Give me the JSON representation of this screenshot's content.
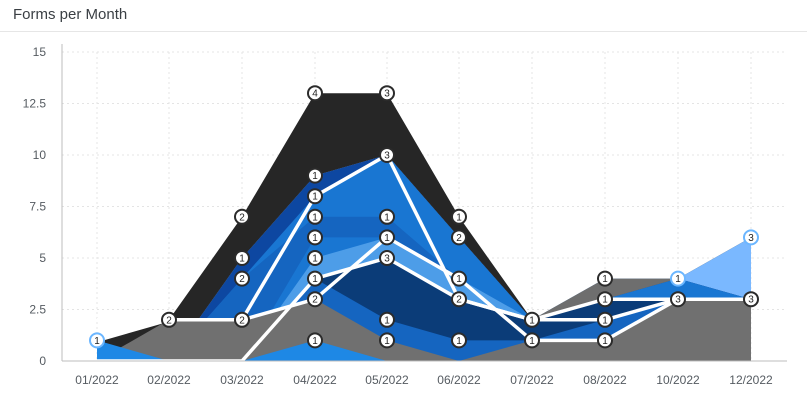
{
  "header": {
    "title": "Forms per Month"
  },
  "colors": {
    "gridline": "#e4e4e4",
    "axis": "#bdbdbd",
    "highlight_line": "#ffffff",
    "highlight_marker": "#6bb6ff"
  },
  "chart_data": {
    "type": "area",
    "stacked": true,
    "title": "Forms per Month",
    "xlabel": "",
    "ylabel": "",
    "categories": [
      "01/2022",
      "02/2022",
      "03/2022",
      "04/2022",
      "05/2022",
      "06/2022",
      "07/2022",
      "08/2022",
      "10/2022",
      "12/2022"
    ],
    "ylim": [
      0,
      15
    ],
    "yticks": [
      "0",
      "2.5",
      "5",
      "7.5",
      "10",
      "12.5",
      "15"
    ],
    "grid": true,
    "legend": "none",
    "cumulative_levels": [
      {
        "color": "#1e88e5",
        "values": [
          1,
          0,
          0,
          1,
          0,
          0,
          0,
          0,
          0,
          0
        ]
      },
      {
        "color": "#707070",
        "values": [
          0,
          2,
          2,
          3,
          1,
          0,
          1,
          1,
          3,
          3
        ]
      },
      {
        "color": "#1565c0",
        "values": [
          0,
          0,
          0,
          4,
          2,
          1,
          1,
          2,
          3,
          3
        ]
      },
      {
        "color": "#0b3c78",
        "values": [
          0,
          0,
          0,
          4,
          5,
          3,
          2,
          3,
          3,
          3
        ]
      },
      {
        "color": "#4d9de8",
        "values": [
          0,
          0,
          0,
          5,
          6,
          4,
          2,
          3,
          3,
          3
        ]
      },
      {
        "color": "#1976d2",
        "values": [
          0,
          0,
          0,
          6,
          6,
          4,
          2,
          3,
          3,
          3
        ]
      },
      {
        "color": "#1565c0",
        "values": [
          0,
          0,
          4,
          7,
          7,
          4,
          2,
          3,
          3,
          3
        ]
      },
      {
        "color": "#1976d2",
        "values": [
          0,
          0,
          4,
          8,
          10,
          6,
          2,
          3,
          4,
          3
        ]
      },
      {
        "color": "#0d47a1",
        "values": [
          0,
          0,
          5,
          9,
          10,
          6,
          2,
          3,
          4,
          3
        ]
      },
      {
        "color": "#6e6e6e",
        "values": [
          0,
          0,
          5,
          9,
          10,
          6,
          2,
          4,
          4,
          3
        ]
      },
      {
        "color": "#7ab8ff",
        "values": [
          0,
          0,
          5,
          9,
          10,
          6,
          2,
          4,
          4,
          6
        ]
      },
      {
        "color": "#262626",
        "values": [
          1,
          2,
          7,
          13,
          13,
          7,
          2,
          4,
          4,
          6
        ]
      }
    ],
    "highlighted_line": [
      2,
      2,
      2,
      8,
      10,
      3,
      2,
      2,
      3,
      3
    ],
    "highlighted_line_2": [
      1,
      2,
      2,
      3,
      6,
      4,
      1,
      1,
      3,
      3
    ],
    "highlighted_line_3": [
      0,
      0,
      0,
      4,
      5,
      3,
      2,
      3,
      3,
      3
    ],
    "markers": [
      {
        "xi": 0,
        "y": 1,
        "label": "1",
        "blue": true
      },
      {
        "xi": 1,
        "y": 2,
        "label": "2"
      },
      {
        "xi": 2,
        "y": 2,
        "label": "2"
      },
      {
        "xi": 2,
        "y": 4,
        "label": "2"
      },
      {
        "xi": 2,
        "y": 5,
        "label": "1"
      },
      {
        "xi": 2,
        "y": 7,
        "label": "2"
      },
      {
        "xi": 3,
        "y": 1,
        "label": "1"
      },
      {
        "xi": 3,
        "y": 3,
        "label": "2"
      },
      {
        "xi": 3,
        "y": 4,
        "label": "1"
      },
      {
        "xi": 3,
        "y": 5,
        "label": "1"
      },
      {
        "xi": 3,
        "y": 6,
        "label": "1"
      },
      {
        "xi": 3,
        "y": 7,
        "label": "1"
      },
      {
        "xi": 3,
        "y": 8,
        "label": "1"
      },
      {
        "xi": 3,
        "y": 9,
        "label": "1"
      },
      {
        "xi": 3,
        "y": 13,
        "label": "4"
      },
      {
        "xi": 4,
        "y": 1,
        "label": "1"
      },
      {
        "xi": 4,
        "y": 2,
        "label": "1"
      },
      {
        "xi": 4,
        "y": 5,
        "label": "3"
      },
      {
        "xi": 4,
        "y": 6,
        "label": "1"
      },
      {
        "xi": 4,
        "y": 7,
        "label": "1"
      },
      {
        "xi": 4,
        "y": 10,
        "label": "3"
      },
      {
        "xi": 4,
        "y": 13,
        "label": "3"
      },
      {
        "xi": 5,
        "y": 1,
        "label": "1"
      },
      {
        "xi": 5,
        "y": 3,
        "label": "2"
      },
      {
        "xi": 5,
        "y": 4,
        "label": "1"
      },
      {
        "xi": 5,
        "y": 6,
        "label": "2"
      },
      {
        "xi": 5,
        "y": 7,
        "label": "1"
      },
      {
        "xi": 6,
        "y": 1,
        "label": "1"
      },
      {
        "xi": 6,
        "y": 2,
        "label": "1"
      },
      {
        "xi": 7,
        "y": 1,
        "label": "1"
      },
      {
        "xi": 7,
        "y": 2,
        "label": "1"
      },
      {
        "xi": 7,
        "y": 3,
        "label": "1"
      },
      {
        "xi": 7,
        "y": 4,
        "label": "1"
      },
      {
        "xi": 8,
        "y": 3,
        "label": "3"
      },
      {
        "xi": 8,
        "y": 4,
        "label": "1",
        "blue": true
      },
      {
        "xi": 9,
        "y": 3,
        "label": "3"
      },
      {
        "xi": 9,
        "y": 6,
        "label": "3",
        "blue": true
      }
    ]
  }
}
